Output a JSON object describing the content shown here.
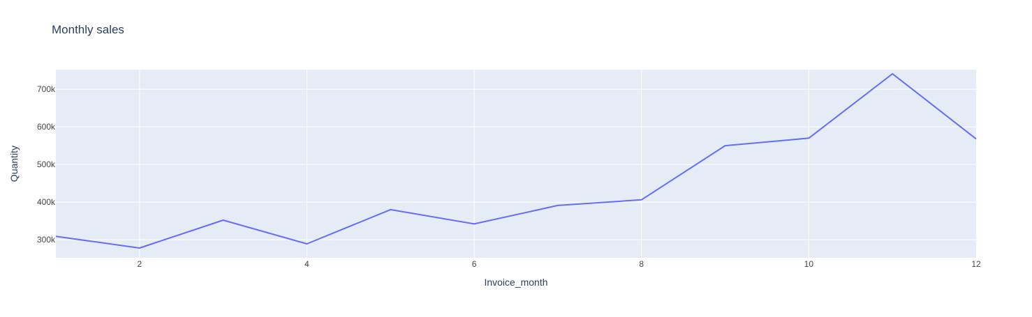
{
  "chart_data": {
    "type": "line",
    "title": "Monthly sales",
    "xlabel": "Invoice_month",
    "ylabel": "Quantity",
    "xlim": [
      1,
      12
    ],
    "ylim": [
      252000,
      752000
    ],
    "x_ticks": [
      2,
      4,
      6,
      8,
      10,
      12
    ],
    "y_ticks": [
      300000,
      400000,
      500000,
      600000,
      700000
    ],
    "y_tick_labels": [
      "300k",
      "400k",
      "500k",
      "600k",
      "700k"
    ],
    "grid": true,
    "legend": "none",
    "series": [
      {
        "x": [
          1,
          2,
          3,
          4,
          5,
          6,
          7,
          8,
          9,
          10,
          11,
          12
        ],
        "values": [
          309000,
          278000,
          352000,
          289000,
          380000,
          342000,
          391000,
          406000,
          550000,
          570000,
          741000,
          568000
        ],
        "color": "#636efa"
      }
    ],
    "colors": {
      "plot_bg": "#e5ecf6",
      "grid": "#ffffff",
      "text": "#2a3f5f",
      "tick_text": "#444444"
    }
  }
}
